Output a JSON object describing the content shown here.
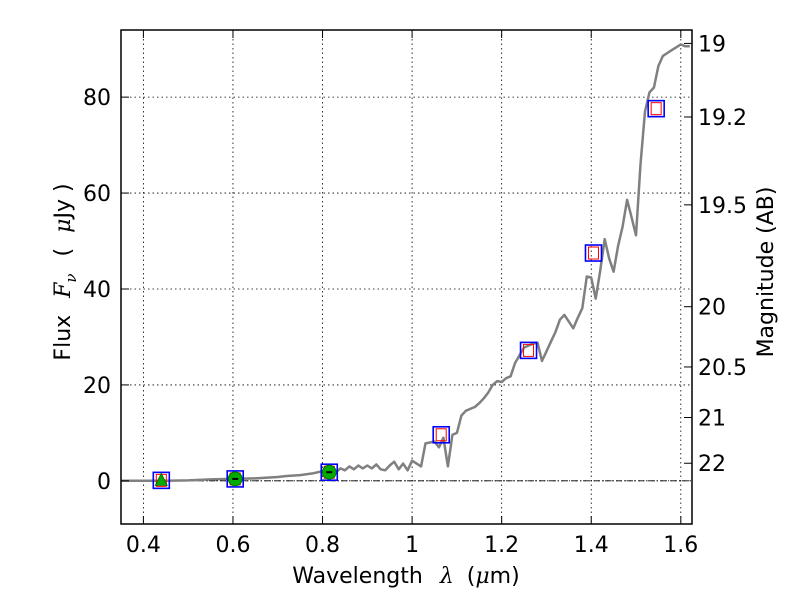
{
  "chart_data": {
    "type": "line",
    "xlabel": "Wavelength",
    "xlabel_symbol": "λ",
    "xlabel_unit_open": "(",
    "xlabel_unit_mu": "μ",
    "xlabel_unit_rest": "m)",
    "ylabel": "Flux",
    "ylabel_symbol": "F",
    "ylabel_subscript": "ν",
    "ylabel_unit_open": "(",
    "ylabel_unit_mu": "μ",
    "ylabel_unit_rest": "Jy )",
    "y2label": "Magnitude (AB)",
    "xlim": [
      0.35,
      1.625
    ],
    "ylim": [
      -9,
      94
    ],
    "x_ticks": [
      {
        "value": 0.4,
        "label": "0.4"
      },
      {
        "value": 0.6,
        "label": "0.6"
      },
      {
        "value": 0.8,
        "label": "0.8"
      },
      {
        "value": 1.0,
        "label": "1"
      },
      {
        "value": 1.2,
        "label": "1.2"
      },
      {
        "value": 1.4,
        "label": "1.4"
      },
      {
        "value": 1.6,
        "label": "1.6"
      }
    ],
    "y_ticks": [
      {
        "value": 0,
        "label": "0"
      },
      {
        "value": 20,
        "label": "20"
      },
      {
        "value": 40,
        "label": "40"
      },
      {
        "value": 60,
        "label": "60"
      },
      {
        "value": 80,
        "label": "80"
      }
    ],
    "y2_ticks": [
      {
        "value": 19,
        "label": "19"
      },
      {
        "value": 19.2,
        "label": "19.2"
      },
      {
        "value": 19.5,
        "label": "19.5"
      },
      {
        "value": 20,
        "label": "20"
      },
      {
        "value": 20.5,
        "label": "20.5"
      },
      {
        "value": 21,
        "label": "21"
      },
      {
        "value": 22,
        "label": "22"
      }
    ],
    "grid": true,
    "zero_line": true,
    "colors": {
      "spectrum": "#808080",
      "grid": "#000000",
      "box": "#0000ff",
      "model": "#ff0000",
      "marker": "#00aa00",
      "zero_line": "#000000"
    },
    "series": [
      {
        "kind": "spectrum",
        "x": [
          0.35,
          0.45,
          0.5,
          0.55,
          0.6,
          0.65,
          0.7,
          0.72,
          0.75,
          0.78,
          0.8,
          0.81,
          0.82,
          0.83,
          0.84,
          0.85,
          0.86,
          0.87,
          0.88,
          0.89,
          0.9,
          0.91,
          0.92,
          0.93,
          0.94,
          0.95,
          0.96,
          0.97,
          0.98,
          0.99,
          1.0,
          1.01,
          1.02,
          1.03,
          1.04,
          1.05,
          1.06,
          1.07,
          1.08,
          1.09,
          1.1,
          1.11,
          1.12,
          1.13,
          1.14,
          1.15,
          1.16,
          1.17,
          1.18,
          1.19,
          1.2,
          1.21,
          1.22,
          1.23,
          1.24,
          1.25,
          1.26,
          1.27,
          1.28,
          1.29,
          1.3,
          1.31,
          1.32,
          1.33,
          1.34,
          1.35,
          1.36,
          1.37,
          1.38,
          1.39,
          1.4,
          1.41,
          1.42,
          1.43,
          1.44,
          1.45,
          1.46,
          1.47,
          1.48,
          1.49,
          1.5,
          1.51,
          1.52,
          1.53,
          1.54,
          1.55,
          1.56,
          1.57,
          1.58,
          1.59,
          1.6,
          1.61,
          1.62
        ],
        "y": [
          0,
          0,
          0.1,
          0.3,
          0.4,
          0.5,
          0.8,
          1.0,
          1.2,
          1.6,
          2.0,
          1.6,
          2.4,
          1.8,
          2.6,
          2.2,
          3.0,
          2.4,
          3.2,
          2.6,
          3.2,
          2.6,
          3.4,
          2.4,
          2.2,
          3.2,
          4.0,
          2.4,
          3.6,
          2.2,
          4.2,
          3.6,
          3.0,
          7.8,
          8.0,
          8.2,
          7.0,
          9.0,
          3.0,
          9.6,
          10.0,
          13.6,
          14.6,
          15.0,
          15.4,
          16.2,
          17.2,
          18.4,
          20.0,
          20.8,
          20.6,
          21.4,
          21.8,
          24.6,
          26.2,
          27.8,
          28.2,
          28.6,
          28.8,
          25.0,
          27.0,
          29.0,
          31.0,
          33.6,
          34.6,
          33.2,
          31.8,
          34.0,
          36.0,
          42.6,
          42.4,
          38.0,
          43.8,
          50.4,
          46.4,
          43.6,
          49.0,
          53.0,
          58.6,
          55.0,
          51.2,
          66.0,
          77.0,
          81.0,
          82.0,
          86.5,
          88.6,
          89.2,
          89.8,
          90.4,
          91.0,
          90.6,
          90.6
        ]
      }
    ],
    "photometry": [
      {
        "x": 0.44,
        "y": 0.1,
        "marker": "triangle"
      },
      {
        "x": 0.605,
        "y": 0.4,
        "marker": "circle"
      },
      {
        "x": 0.815,
        "y": 1.8,
        "marker": "circle"
      },
      {
        "x": 1.065,
        "y": 9.6,
        "marker": "none"
      },
      {
        "x": 1.26,
        "y": 27.2,
        "marker": "none"
      },
      {
        "x": 1.405,
        "y": 47.5,
        "marker": "none"
      },
      {
        "x": 1.545,
        "y": 77.6,
        "marker": "none"
      }
    ]
  }
}
